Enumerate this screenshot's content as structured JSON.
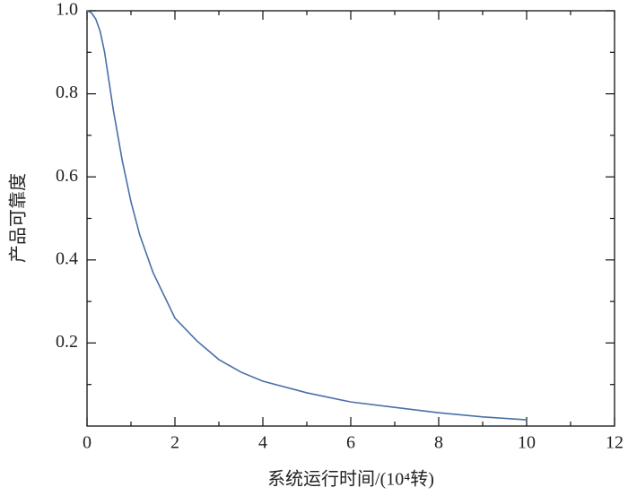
{
  "chart_data": {
    "type": "line",
    "xlabel": "系统运行时间/(10⁴转)",
    "ylabel": "产品可靠度",
    "series": [
      {
        "color": "#4a6fa8",
        "x": [
          0,
          0.1,
          0.2,
          0.3,
          0.4,
          0.5,
          0.6,
          0.8,
          1,
          1.2,
          1.5,
          2,
          2.5,
          3,
          3.5,
          4,
          5,
          6,
          7,
          8,
          9,
          10
        ],
        "values": [
          1,
          0.995,
          0.98,
          0.95,
          0.9,
          0.83,
          0.76,
          0.64,
          0.54,
          0.46,
          0.37,
          0.26,
          0.205,
          0.16,
          0.13,
          0.108,
          0.08,
          0.058,
          0.045,
          0.032,
          0.022,
          0.015
        ]
      }
    ],
    "xlim": [
      0,
      12
    ],
    "ylim": [
      0,
      1
    ],
    "xticks": [
      0,
      2,
      4,
      6,
      8,
      10,
      12
    ],
    "yticks": [
      0.2,
      0.4,
      0.6,
      0.8,
      {
        "value": 1,
        "label": "1.0"
      }
    ],
    "xticks_minor": [
      1,
      3,
      5,
      7,
      9,
      11
    ],
    "yticks_minor": [
      0.1,
      0.3,
      0.5,
      0.7,
      0.9
    ]
  }
}
